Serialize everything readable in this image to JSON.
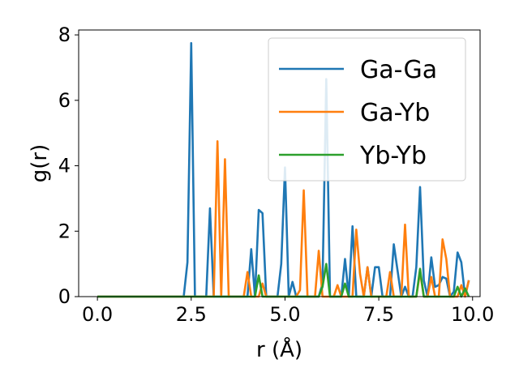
{
  "chart_data": {
    "type": "line",
    "title": "",
    "xlabel": "r (Å)",
    "ylabel": "g(r)",
    "xlim": [
      -0.5,
      10.2
    ],
    "ylim": [
      0,
      8.15
    ],
    "xticks": [
      0.0,
      2.5,
      5.0,
      7.5,
      10.0
    ],
    "xtick_labels": [
      "0.0",
      "2.5",
      "5.0",
      "7.5",
      "10.0"
    ],
    "yticks": [
      0,
      2,
      4,
      6,
      8
    ],
    "ytick_labels": [
      "0",
      "2",
      "4",
      "6",
      "8"
    ],
    "grid": false,
    "legend_position": "top-right",
    "series": [
      {
        "name": "Ga-Ga",
        "color": "#1f77b4",
        "points": [
          [
            0.0,
            0
          ],
          [
            2.2,
            0
          ],
          [
            2.3,
            0
          ],
          [
            2.4,
            1.05
          ],
          [
            2.5,
            7.75
          ],
          [
            2.6,
            0
          ],
          [
            2.9,
            0
          ],
          [
            3.0,
            2.7
          ],
          [
            3.1,
            0
          ],
          [
            4.0,
            0
          ],
          [
            4.1,
            1.45
          ],
          [
            4.2,
            0
          ],
          [
            4.3,
            2.65
          ],
          [
            4.4,
            2.55
          ],
          [
            4.5,
            0
          ],
          [
            4.8,
            0
          ],
          [
            4.9,
            1.0
          ],
          [
            5.0,
            3.95
          ],
          [
            5.1,
            0
          ],
          [
            5.2,
            0.45
          ],
          [
            5.3,
            0
          ],
          [
            5.9,
            0
          ],
          [
            6.0,
            0.4
          ],
          [
            6.1,
            6.65
          ],
          [
            6.2,
            0
          ],
          [
            6.5,
            0
          ],
          [
            6.6,
            1.15
          ],
          [
            6.7,
            0
          ],
          [
            6.8,
            2.15
          ],
          [
            6.9,
            0
          ],
          [
            7.1,
            0
          ],
          [
            7.2,
            0.9
          ],
          [
            7.3,
            0
          ],
          [
            7.4,
            0.9
          ],
          [
            7.5,
            0.9
          ],
          [
            7.6,
            0
          ],
          [
            7.8,
            0
          ],
          [
            7.9,
            1.6
          ],
          [
            8.0,
            0.8
          ],
          [
            8.1,
            0
          ],
          [
            8.2,
            0.3
          ],
          [
            8.3,
            0
          ],
          [
            8.4,
            0
          ],
          [
            8.5,
            0.9
          ],
          [
            8.6,
            3.35
          ],
          [
            8.7,
            0.5
          ],
          [
            8.8,
            0
          ],
          [
            8.9,
            1.2
          ],
          [
            9.0,
            0.3
          ],
          [
            9.1,
            0.35
          ],
          [
            9.2,
            0.6
          ],
          [
            9.3,
            0.55
          ],
          [
            9.4,
            0
          ],
          [
            9.5,
            0.15
          ],
          [
            9.6,
            1.35
          ],
          [
            9.7,
            1.05
          ],
          [
            9.8,
            0
          ],
          [
            9.9,
            0.5
          ]
        ]
      },
      {
        "name": "Ga-Yb",
        "color": "#ff7f0e",
        "points": [
          [
            0.0,
            0
          ],
          [
            3.0,
            0
          ],
          [
            3.1,
            0
          ],
          [
            3.2,
            4.75
          ],
          [
            3.3,
            0
          ],
          [
            3.4,
            4.2
          ],
          [
            3.5,
            0
          ],
          [
            3.9,
            0
          ],
          [
            4.0,
            0.75
          ],
          [
            4.1,
            0
          ],
          [
            4.3,
            0
          ],
          [
            4.4,
            0.4
          ],
          [
            4.5,
            0
          ],
          [
            5.3,
            0
          ],
          [
            5.4,
            0.2
          ],
          [
            5.5,
            3.25
          ],
          [
            5.6,
            0
          ],
          [
            5.8,
            0
          ],
          [
            5.9,
            1.4
          ],
          [
            6.0,
            0
          ],
          [
            6.3,
            0
          ],
          [
            6.4,
            0.35
          ],
          [
            6.5,
            0
          ],
          [
            6.8,
            0
          ],
          [
            6.9,
            2.05
          ],
          [
            7.0,
            0.7
          ],
          [
            7.1,
            0
          ],
          [
            7.2,
            0.9
          ],
          [
            7.3,
            0
          ],
          [
            7.7,
            0
          ],
          [
            7.8,
            0.75
          ],
          [
            7.9,
            0
          ],
          [
            8.1,
            0
          ],
          [
            8.2,
            2.2
          ],
          [
            8.3,
            0
          ],
          [
            8.5,
            0
          ],
          [
            8.6,
            0.75
          ],
          [
            8.7,
            0
          ],
          [
            8.8,
            0
          ],
          [
            8.9,
            0.6
          ],
          [
            9.0,
            0
          ],
          [
            9.1,
            0
          ],
          [
            9.2,
            1.75
          ],
          [
            9.3,
            1.15
          ],
          [
            9.4,
            0
          ],
          [
            9.6,
            0
          ],
          [
            9.7,
            0.35
          ],
          [
            9.8,
            0
          ],
          [
            9.9,
            0.5
          ]
        ]
      },
      {
        "name": "Yb-Yb",
        "color": "#2ca02c",
        "points": [
          [
            0.0,
            0
          ],
          [
            4.2,
            0
          ],
          [
            4.3,
            0.65
          ],
          [
            4.4,
            0
          ],
          [
            5.9,
            0
          ],
          [
            6.0,
            0.3
          ],
          [
            6.1,
            1.0
          ],
          [
            6.2,
            0
          ],
          [
            6.5,
            0
          ],
          [
            6.6,
            0.4
          ],
          [
            6.7,
            0
          ],
          [
            8.5,
            0
          ],
          [
            8.6,
            0.85
          ],
          [
            8.7,
            0
          ],
          [
            9.5,
            0
          ],
          [
            9.6,
            0.3
          ],
          [
            9.7,
            0
          ],
          [
            9.8,
            0.25
          ],
          [
            9.9,
            0
          ]
        ]
      }
    ]
  }
}
